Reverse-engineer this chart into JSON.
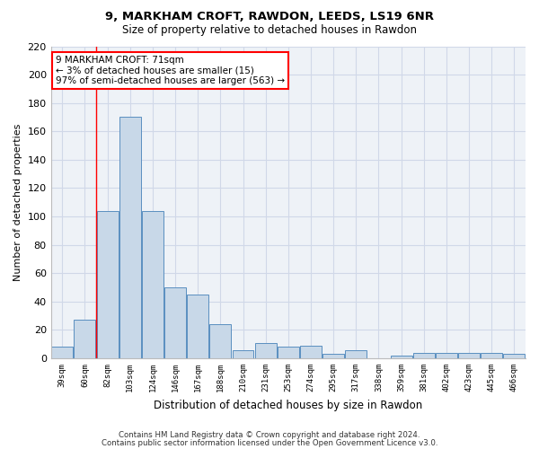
{
  "title1": "9, MARKHAM CROFT, RAWDON, LEEDS, LS19 6NR",
  "title2": "Size of property relative to detached houses in Rawdon",
  "xlabel": "Distribution of detached houses by size in Rawdon",
  "ylabel": "Number of detached properties",
  "categories": [
    "39sqm",
    "60sqm",
    "82sqm",
    "103sqm",
    "124sqm",
    "146sqm",
    "167sqm",
    "188sqm",
    "210sqm",
    "231sqm",
    "253sqm",
    "274sqm",
    "295sqm",
    "317sqm",
    "338sqm",
    "359sqm",
    "381sqm",
    "402sqm",
    "423sqm",
    "445sqm",
    "466sqm"
  ],
  "values": [
    8,
    27,
    104,
    170,
    104,
    50,
    45,
    24,
    6,
    11,
    8,
    9,
    3,
    6,
    0,
    2,
    4,
    4,
    4,
    4,
    3
  ],
  "bar_color": "#c8d8e8",
  "bar_edge_color": "#5a8fc0",
  "grid_color": "#d0d8e8",
  "background_color": "#eef2f7",
  "red_line_x": 1.5,
  "annotation_text": "9 MARKHAM CROFT: 71sqm\n← 3% of detached houses are smaller (15)\n97% of semi-detached houses are larger (563) →",
  "annotation_box_color": "white",
  "annotation_box_edge": "red",
  "ylim": [
    0,
    220
  ],
  "yticks": [
    0,
    20,
    40,
    60,
    80,
    100,
    120,
    140,
    160,
    180,
    200,
    220
  ],
  "footnote1": "Contains HM Land Registry data © Crown copyright and database right 2024.",
  "footnote2": "Contains public sector information licensed under the Open Government Licence v3.0."
}
